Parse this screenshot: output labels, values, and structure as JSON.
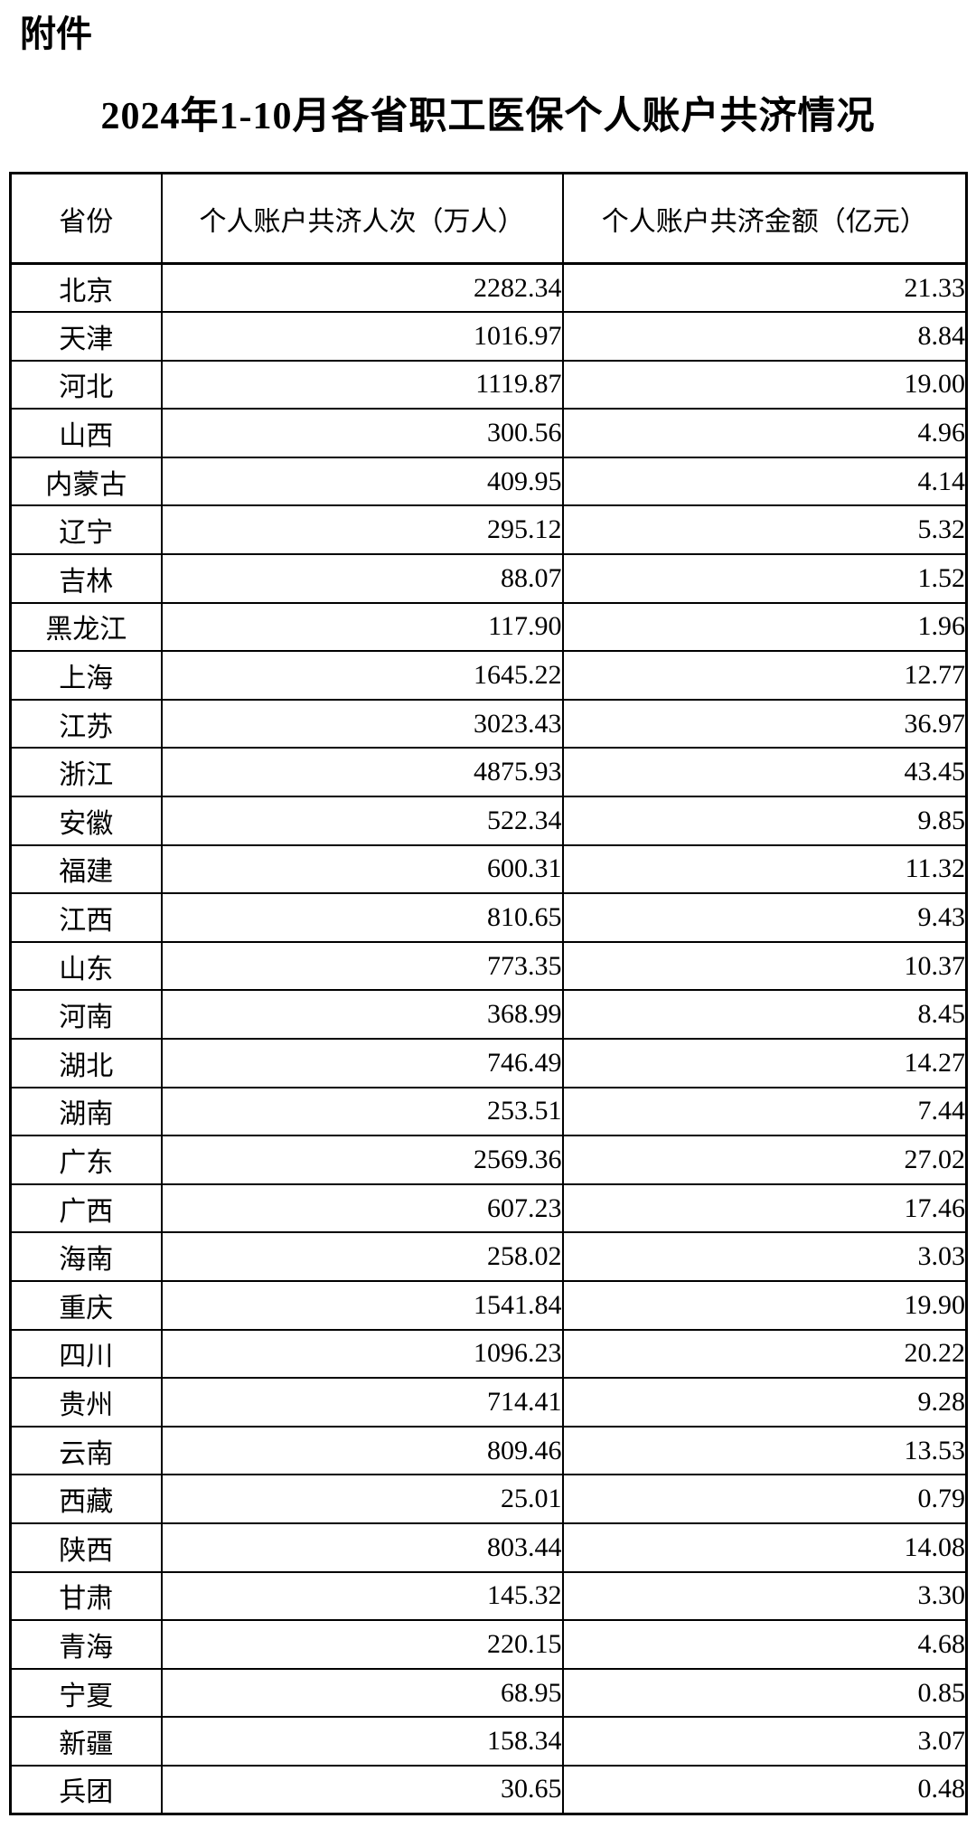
{
  "attachment": {
    "label": "附件"
  },
  "title": "2024年1-10月各省职工医保个人账户共济情况",
  "colors": {
    "background": "#ffffff",
    "text": "#000000",
    "border": "#000000"
  },
  "table": {
    "columns": [
      {
        "label": "省份"
      },
      {
        "label": "个人账户共济人次（万人）"
      },
      {
        "label": "个人账户共济金额（亿元）"
      }
    ],
    "rows": [
      {
        "province": "北京",
        "persons": "2282.34",
        "amount": "21.33"
      },
      {
        "province": "天津",
        "persons": "1016.97",
        "amount": "8.84"
      },
      {
        "province": "河北",
        "persons": "1119.87",
        "amount": "19.00"
      },
      {
        "province": "山西",
        "persons": "300.56",
        "amount": "4.96"
      },
      {
        "province": "内蒙古",
        "persons": "409.95",
        "amount": "4.14"
      },
      {
        "province": "辽宁",
        "persons": "295.12",
        "amount": "5.32"
      },
      {
        "province": "吉林",
        "persons": "88.07",
        "amount": "1.52"
      },
      {
        "province": "黑龙江",
        "persons": "117.90",
        "amount": "1.96"
      },
      {
        "province": "上海",
        "persons": "1645.22",
        "amount": "12.77"
      },
      {
        "province": "江苏",
        "persons": "3023.43",
        "amount": "36.97"
      },
      {
        "province": "浙江",
        "persons": "4875.93",
        "amount": "43.45"
      },
      {
        "province": "安徽",
        "persons": "522.34",
        "amount": "9.85"
      },
      {
        "province": "福建",
        "persons": "600.31",
        "amount": "11.32"
      },
      {
        "province": "江西",
        "persons": "810.65",
        "amount": "9.43"
      },
      {
        "province": "山东",
        "persons": "773.35",
        "amount": "10.37"
      },
      {
        "province": "河南",
        "persons": "368.99",
        "amount": "8.45"
      },
      {
        "province": "湖北",
        "persons": "746.49",
        "amount": "14.27"
      },
      {
        "province": "湖南",
        "persons": "253.51",
        "amount": "7.44"
      },
      {
        "province": "广东",
        "persons": "2569.36",
        "amount": "27.02"
      },
      {
        "province": "广西",
        "persons": "607.23",
        "amount": "17.46"
      },
      {
        "province": "海南",
        "persons": "258.02",
        "amount": "3.03"
      },
      {
        "province": "重庆",
        "persons": "1541.84",
        "amount": "19.90"
      },
      {
        "province": "四川",
        "persons": "1096.23",
        "amount": "20.22"
      },
      {
        "province": "贵州",
        "persons": "714.41",
        "amount": "9.28"
      },
      {
        "province": "云南",
        "persons": "809.46",
        "amount": "13.53"
      },
      {
        "province": "西藏",
        "persons": "25.01",
        "amount": "0.79"
      },
      {
        "province": "陕西",
        "persons": "803.44",
        "amount": "14.08"
      },
      {
        "province": "甘肃",
        "persons": "145.32",
        "amount": "3.30"
      },
      {
        "province": "青海",
        "persons": "220.15",
        "amount": "4.68"
      },
      {
        "province": "宁夏",
        "persons": "68.95",
        "amount": "0.85"
      },
      {
        "province": "新疆",
        "persons": "158.34",
        "amount": "3.07"
      },
      {
        "province": "兵团",
        "persons": "30.65",
        "amount": "0.48"
      }
    ]
  }
}
